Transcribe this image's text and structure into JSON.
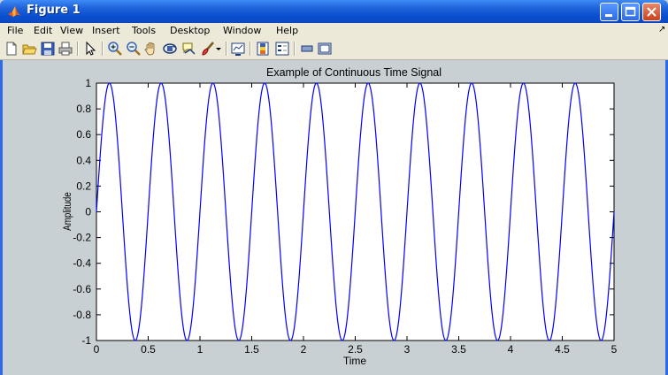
{
  "window": {
    "title": "Figure 1",
    "icon": "matlab-logo-icon"
  },
  "menu": {
    "items": [
      "File",
      "Edit",
      "View",
      "Insert",
      "Tools",
      "Desktop",
      "Window",
      "Help"
    ],
    "overflow_arrow": "↗"
  },
  "toolbar": {
    "icons": [
      "new-figure-icon",
      "open-file-icon",
      "save-icon",
      "print-icon",
      "pointer-icon",
      "zoom-in-icon",
      "zoom-out-icon",
      "pan-hand-icon",
      "rotate-3d-icon",
      "data-cursor-icon",
      "brush-icon",
      "link-plot-icon",
      "insert-colorbar-icon",
      "insert-legend-icon",
      "hide-plot-tools-icon",
      "show-plot-tools-icon"
    ]
  },
  "colors": {
    "line": "#0000ff",
    "figure_bg": "#c8d0d4",
    "axes_bg": "#ffffff"
  },
  "chart_data": {
    "type": "line",
    "title": "Example of Continuous Time Signal",
    "xlabel": "Time",
    "ylabel": "Amplitude",
    "xlim": [
      0,
      5
    ],
    "ylim": [
      -1,
      1
    ],
    "xticks": [
      "0",
      "0.5",
      "1",
      "1.5",
      "2",
      "2.5",
      "3",
      "3.5",
      "4",
      "4.5",
      "5"
    ],
    "yticks": [
      "1",
      "0.8",
      "0.6",
      "0.4",
      "0.2",
      "0",
      "-0.2",
      "-0.4",
      "-0.6",
      "-0.8",
      "-1"
    ],
    "grid": false,
    "series": [
      {
        "function": "sin(2*pi*2*t)",
        "frequency_hz": 2,
        "amplitude": 1,
        "t_start": 0,
        "t_end": 5
      }
    ]
  }
}
